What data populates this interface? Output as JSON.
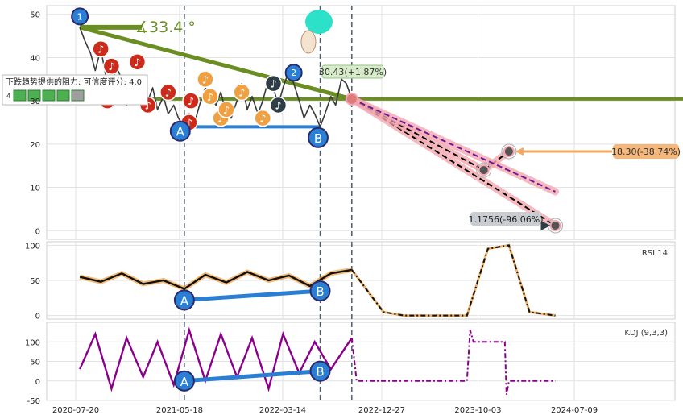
{
  "chart_data": [
    {
      "type": "line",
      "panel": "price",
      "ylim": [
        -2,
        52
      ],
      "yticks": [
        0,
        10,
        20,
        30,
        40,
        50
      ],
      "grid": true,
      "price_series": [
        {
          "date": "2020-08-01",
          "value": 47
        },
        {
          "date": "2020-08-15",
          "value": 44
        },
        {
          "date": "2020-09-01",
          "value": 41
        },
        {
          "date": "2020-09-15",
          "value": 37
        },
        {
          "date": "2020-10-01",
          "value": 42
        },
        {
          "date": "2020-10-15",
          "value": 36
        },
        {
          "date": "2020-11-01",
          "value": 33
        },
        {
          "date": "2020-11-15",
          "value": 38
        },
        {
          "date": "2020-12-01",
          "value": 35
        },
        {
          "date": "2020-12-15",
          "value": 29
        },
        {
          "date": "2021-01-01",
          "value": 33
        },
        {
          "date": "2021-01-15",
          "value": 31
        },
        {
          "date": "2021-02-01",
          "value": 34
        },
        {
          "date": "2021-02-15",
          "value": 30
        },
        {
          "date": "2021-03-01",
          "value": 33
        },
        {
          "date": "2021-03-15",
          "value": 28
        },
        {
          "date": "2021-04-01",
          "value": 31
        },
        {
          "date": "2021-04-15",
          "value": 27
        },
        {
          "date": "2021-05-01",
          "value": 29
        },
        {
          "date": "2021-05-15",
          "value": 26
        },
        {
          "date": "2021-06-01",
          "value": 24
        },
        {
          "date": "2021-06-15",
          "value": 27
        },
        {
          "date": "2021-07-01",
          "value": 25
        },
        {
          "date": "2021-07-15",
          "value": 29
        },
        {
          "date": "2021-08-01",
          "value": 33
        },
        {
          "date": "2021-08-15",
          "value": 31
        },
        {
          "date": "2021-09-01",
          "value": 29
        },
        {
          "date": "2021-09-15",
          "value": 32
        },
        {
          "date": "2021-10-01",
          "value": 27
        },
        {
          "date": "2021-10-15",
          "value": 26
        },
        {
          "date": "2021-11-01",
          "value": 30
        },
        {
          "date": "2021-11-15",
          "value": 34
        },
        {
          "date": "2021-12-01",
          "value": 28
        },
        {
          "date": "2021-12-15",
          "value": 31
        },
        {
          "date": "2022-01-01",
          "value": 27
        },
        {
          "date": "2022-01-15",
          "value": 30
        },
        {
          "date": "2022-02-01",
          "value": 35
        },
        {
          "date": "2022-02-15",
          "value": 33
        },
        {
          "date": "2022-03-01",
          "value": 29
        },
        {
          "date": "2022-03-15",
          "value": 33
        },
        {
          "date": "2022-04-01",
          "value": 37
        },
        {
          "date": "2022-04-15",
          "value": 34
        },
        {
          "date": "2022-05-01",
          "value": 30
        },
        {
          "date": "2022-05-15",
          "value": 26
        },
        {
          "date": "2022-06-01",
          "value": 29
        },
        {
          "date": "2022-06-15",
          "value": 27
        },
        {
          "date": "2022-07-01",
          "value": 24
        },
        {
          "date": "2022-07-15",
          "value": 27
        },
        {
          "date": "2022-08-01",
          "value": 31
        },
        {
          "date": "2022-08-15",
          "value": 29
        },
        {
          "date": "2022-09-01",
          "value": 35
        },
        {
          "date": "2022-09-15",
          "value": 34
        },
        {
          "date": "2022-10-01",
          "value": 30.43
        }
      ],
      "trend_lines": [
        {
          "kind": "resistance",
          "from": {
            "date": "2020-08-01",
            "value": 47
          },
          "to": {
            "date": "2022-10-01",
            "value": 30.43
          },
          "color": "#6b8e23"
        },
        {
          "kind": "horizontal",
          "value": 30.43,
          "color": "#6b8e23"
        },
        {
          "kind": "support",
          "from": {
            "date": "2021-06-01",
            "value": 24
          },
          "to": {
            "date": "2022-07-01",
            "value": 24
          },
          "color": "#2a7fd4"
        }
      ],
      "projections": [
        {
          "points": [
            {
              "date": "2022-10-01",
              "value": 30.43
            },
            {
              "date": "2024-05-15",
              "value": 1.1756
            }
          ],
          "style": "dashed-black",
          "halo": "#f4a7b0"
        },
        {
          "points": [
            {
              "date": "2022-10-01",
              "value": 30.43
            },
            {
              "date": "2023-10-20",
              "value": 14
            },
            {
              "date": "2024-01-01",
              "value": 18.3
            }
          ],
          "style": "dashed-black",
          "halo": "#f4a7b0"
        },
        {
          "points": [
            {
              "date": "2022-10-01",
              "value": 30.43
            },
            {
              "date": "2024-05-15",
              "value": 9
            }
          ],
          "style": "dashed-purple",
          "halo": "#f4a7b0"
        }
      ],
      "annotations": {
        "angle_text": "∡33.4 °",
        "last_price_label": "30.43(+1.87%)",
        "target1_label": "18.30(-38.74%)",
        "target2_label": "1.1756(-96.06%)",
        "resistance_note": "下跌趋势提供的阻力: 可信度评分: 4.0",
        "badge_left": "4",
        "point_labels": [
          "1",
          "2",
          "A",
          "B"
        ]
      },
      "target_points": [
        {
          "date": "2023-10-20",
          "value": 14
        },
        {
          "date": "2024-01-01",
          "value": 18.3
        },
        {
          "date": "2024-05-15",
          "value": 1.1756
        }
      ],
      "colors": {
        "price": "#3a3a3a",
        "trend": "#6b8e23",
        "support": "#2a7fd4",
        "projection_halo": "#f4a7b0",
        "target_arrow": "#f0a860",
        "bottom_arrow": "#2f3e46"
      }
    },
    {
      "type": "line",
      "panel": "rsi",
      "legend": "RSI 14",
      "ylim": [
        -5,
        105
      ],
      "yticks": [
        0,
        50,
        100
      ],
      "actual": [
        {
          "date": "2020-08-01",
          "value": 55
        },
        {
          "date": "2020-10-01",
          "value": 48
        },
        {
          "date": "2020-12-01",
          "value": 60
        },
        {
          "date": "2021-02-01",
          "value": 45
        },
        {
          "date": "2021-04-01",
          "value": 50
        },
        {
          "date": "2021-06-01",
          "value": 38
        },
        {
          "date": "2021-08-01",
          "value": 58
        },
        {
          "date": "2021-10-01",
          "value": 47
        },
        {
          "date": "2021-12-01",
          "value": 62
        },
        {
          "date": "2022-02-01",
          "value": 50
        },
        {
          "date": "2022-04-01",
          "value": 57
        },
        {
          "date": "2022-06-01",
          "value": 42
        },
        {
          "date": "2022-08-01",
          "value": 60
        },
        {
          "date": "2022-10-01",
          "value": 65
        }
      ],
      "projected": [
        {
          "date": "2022-10-01",
          "value": 65
        },
        {
          "date": "2023-01-01",
          "value": 5
        },
        {
          "date": "2023-03-01",
          "value": 0
        },
        {
          "date": "2023-09-01",
          "value": 0
        },
        {
          "date": "2023-11-01",
          "value": 95
        },
        {
          "date": "2024-01-01",
          "value": 100
        },
        {
          "date": "2024-03-01",
          "value": 5
        },
        {
          "date": "2024-05-15",
          "value": 0
        }
      ],
      "divergence": {
        "from": {
          "date": "2021-06-01",
          "value": 22
        },
        "to": {
          "date": "2022-07-01",
          "value": 35
        },
        "labels": [
          "A",
          "B"
        ]
      }
    },
    {
      "type": "line",
      "panel": "kdj",
      "legend": "KDJ (9,3,3)",
      "ylim": [
        -50,
        150
      ],
      "yticks": [
        -50,
        0,
        50,
        100
      ],
      "actual": [
        {
          "date": "2020-08-01",
          "value": 30
        },
        {
          "date": "2020-09-15",
          "value": 120
        },
        {
          "date": "2020-11-01",
          "value": -20
        },
        {
          "date": "2020-12-15",
          "value": 110
        },
        {
          "date": "2021-02-01",
          "value": 10
        },
        {
          "date": "2021-03-15",
          "value": 100
        },
        {
          "date": "2021-05-01",
          "value": -10
        },
        {
          "date": "2021-06-15",
          "value": 130
        },
        {
          "date": "2021-08-01",
          "value": 0
        },
        {
          "date": "2021-09-15",
          "value": 120
        },
        {
          "date": "2021-11-01",
          "value": 10
        },
        {
          "date": "2021-12-15",
          "value": 110
        },
        {
          "date": "2022-02-01",
          "value": -20
        },
        {
          "date": "2022-03-15",
          "value": 120
        },
        {
          "date": "2022-05-01",
          "value": 20
        },
        {
          "date": "2022-06-15",
          "value": 100
        },
        {
          "date": "2022-08-01",
          "value": 30
        },
        {
          "date": "2022-10-01",
          "value": 110
        }
      ],
      "projected": [
        {
          "date": "2022-10-01",
          "value": 110
        },
        {
          "date": "2022-10-15",
          "value": 0
        },
        {
          "date": "2023-09-01",
          "value": 0
        },
        {
          "date": "2023-09-10",
          "value": 130
        },
        {
          "date": "2023-09-20",
          "value": 100
        },
        {
          "date": "2023-12-20",
          "value": 100
        },
        {
          "date": "2023-12-25",
          "value": -35
        },
        {
          "date": "2024-01-01",
          "value": 0
        },
        {
          "date": "2024-05-15",
          "value": 0
        }
      ],
      "divergence": {
        "from": {
          "date": "2021-06-01",
          "value": 0
        },
        "to": {
          "date": "2022-07-01",
          "value": 25
        },
        "labels": [
          "A",
          "B"
        ]
      }
    }
  ],
  "x_axis": {
    "tick_labels": [
      "2020-07-20",
      "2021-05-18",
      "2022-03-14",
      "2022-12-27",
      "2023-10-03",
      "2024-07-09"
    ],
    "vlines": [
      "2021-06-01",
      "2022-07-01",
      "2022-10-01"
    ]
  }
}
